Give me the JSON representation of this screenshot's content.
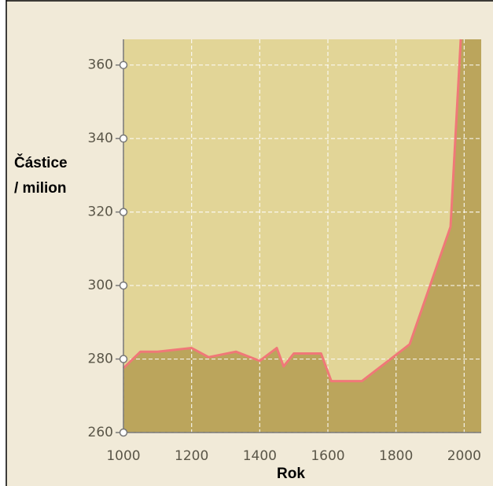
{
  "chart_data": {
    "type": "area",
    "ylabel": [
      "Částice",
      "/ milion"
    ],
    "xlabel": "Rok",
    "series": [
      {
        "color": "#f07878",
        "fill": "#bba55c",
        "x": [
          1000,
          1050,
          1100,
          1200,
          1250,
          1330,
          1400,
          1450,
          1470,
          1500,
          1580,
          1610,
          1700,
          1840,
          1960,
          1990
        ],
        "values": [
          277.5,
          282,
          282,
          283,
          280.5,
          282,
          279.5,
          283,
          278,
          281.5,
          281.5,
          274,
          274,
          284,
          316,
          367
        ]
      }
    ],
    "xlim": [
      1000,
      2050
    ],
    "xticks": [
      1000,
      1200,
      1400,
      1600,
      1800,
      2000
    ],
    "ylim": [
      260,
      367
    ],
    "yticks": [
      260,
      280,
      300,
      320,
      340,
      360
    ],
    "grid": true
  }
}
